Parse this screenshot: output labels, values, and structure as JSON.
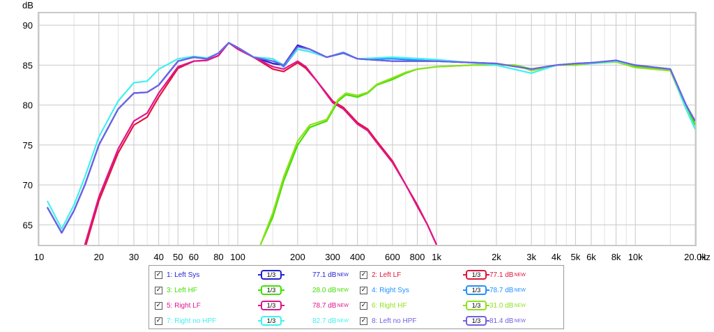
{
  "chart_data": {
    "type": "line",
    "ylabel": "dB",
    "xlabel": "Hz",
    "x_scale": "log",
    "xlim": [
      10,
      20000
    ],
    "ylim": [
      62.5,
      91.5
    ],
    "y_ticks": [
      65,
      70,
      75,
      80,
      85,
      90
    ],
    "x_ticks": [
      {
        "v": 10,
        "l": "10"
      },
      {
        "v": 20,
        "l": "20"
      },
      {
        "v": 30,
        "l": "30"
      },
      {
        "v": 40,
        "l": "40"
      },
      {
        "v": 50,
        "l": "50"
      },
      {
        "v": 60,
        "l": "60"
      },
      {
        "v": 80,
        "l": "80"
      },
      {
        "v": 100,
        "l": "100"
      },
      {
        "v": 200,
        "l": "200"
      },
      {
        "v": 300,
        "l": "300"
      },
      {
        "v": 400,
        "l": "400"
      },
      {
        "v": 600,
        "l": "600"
      },
      {
        "v": 800,
        "l": "800"
      },
      {
        "v": 1000,
        "l": "1k"
      },
      {
        "v": 2000,
        "l": "2k"
      },
      {
        "v": 3000,
        "l": "3k"
      },
      {
        "v": 4000,
        "l": "4k"
      },
      {
        "v": 5000,
        "l": "5k"
      },
      {
        "v": 6000,
        "l": "6k"
      },
      {
        "v": 8000,
        "l": "8k"
      },
      {
        "v": 10000,
        "l": "10k"
      },
      {
        "v": 20000,
        "l": "20.0k"
      }
    ],
    "minor_grid": [
      15,
      25,
      35,
      45,
      70,
      90,
      150,
      250,
      350,
      450,
      500,
      700,
      900,
      1500,
      2500,
      3500,
      4500,
      7000,
      9000,
      15000
    ],
    "grid": true,
    "series": [
      {
        "name": "1: Left Sys",
        "color": "#1f1fd6",
        "points": [
          [
            11,
            67.2
          ],
          [
            13,
            64
          ],
          [
            15,
            66.8
          ],
          [
            17,
            70
          ],
          [
            20,
            75
          ],
          [
            25,
            79.5
          ],
          [
            30,
            81.5
          ],
          [
            35,
            81.6
          ],
          [
            40,
            82.5
          ],
          [
            50,
            85.5
          ],
          [
            60,
            86
          ],
          [
            70,
            85.8
          ],
          [
            80,
            86.5
          ],
          [
            90,
            87.8
          ],
          [
            100,
            87.2
          ],
          [
            120,
            86
          ],
          [
            150,
            85.2
          ],
          [
            170,
            85
          ],
          [
            200,
            87.5
          ],
          [
            230,
            87
          ],
          [
            280,
            86
          ],
          [
            340,
            86.5
          ],
          [
            400,
            85.8
          ],
          [
            600,
            85.5
          ],
          [
            1000,
            85.5
          ],
          [
            2000,
            85.2
          ],
          [
            3000,
            84.5
          ],
          [
            4000,
            85
          ],
          [
            5000,
            85.2
          ],
          [
            6000,
            85.3
          ],
          [
            8000,
            85.5
          ],
          [
            10000,
            85
          ],
          [
            15000,
            84.5
          ],
          [
            18000,
            80
          ],
          [
            20000,
            78
          ]
        ]
      },
      {
        "name": "2: Left LF",
        "color": "#e0143c",
        "points": [
          [
            17,
            62
          ],
          [
            20,
            68
          ],
          [
            25,
            74
          ],
          [
            30,
            77.5
          ],
          [
            35,
            78.5
          ],
          [
            40,
            81
          ],
          [
            50,
            84.6
          ],
          [
            60,
            85.5
          ],
          [
            70,
            85.6
          ],
          [
            80,
            86.2
          ],
          [
            90,
            87.8
          ],
          [
            100,
            87
          ],
          [
            120,
            86
          ],
          [
            150,
            84.5
          ],
          [
            170,
            84.2
          ],
          [
            200,
            85.3
          ],
          [
            220,
            84.6
          ],
          [
            250,
            83
          ],
          [
            300,
            80.5
          ],
          [
            340,
            79.7
          ],
          [
            400,
            77.8
          ],
          [
            450,
            77
          ],
          [
            500,
            75.5
          ],
          [
            600,
            73
          ],
          [
            700,
            70
          ],
          [
            800,
            67.5
          ],
          [
            900,
            65
          ],
          [
            1000,
            62.5
          ]
        ]
      },
      {
        "name": "3: Left HF",
        "color": "#40e000",
        "points": [
          [
            130,
            62.5
          ],
          [
            150,
            66
          ],
          [
            170,
            70.5
          ],
          [
            200,
            75
          ],
          [
            230,
            77.2
          ],
          [
            280,
            78
          ],
          [
            320,
            80.5
          ],
          [
            350,
            81.3
          ],
          [
            400,
            81
          ],
          [
            450,
            81.5
          ],
          [
            500,
            82.5
          ],
          [
            600,
            83.2
          ],
          [
            700,
            84
          ],
          [
            800,
            84.5
          ],
          [
            1000,
            84.8
          ],
          [
            1500,
            85
          ],
          [
            2000,
            85
          ],
          [
            2500,
            85
          ],
          [
            3000,
            84.5
          ],
          [
            4000,
            85
          ],
          [
            5000,
            85
          ],
          [
            6000,
            85.3
          ],
          [
            8000,
            85.5
          ],
          [
            10000,
            84.8
          ],
          [
            15000,
            84.5
          ],
          [
            18000,
            80
          ],
          [
            20000,
            77.5
          ]
        ]
      },
      {
        "name": "4: Right Sys",
        "color": "#1e90ff",
        "points": [
          [
            11,
            67.2
          ],
          [
            13,
            64
          ],
          [
            15,
            66.8
          ],
          [
            17,
            70
          ],
          [
            20,
            75
          ],
          [
            25,
            79.5
          ],
          [
            30,
            81.5
          ],
          [
            35,
            81.6
          ],
          [
            40,
            82.5
          ],
          [
            50,
            85.5
          ],
          [
            60,
            86
          ],
          [
            70,
            85.8
          ],
          [
            80,
            86.5
          ],
          [
            90,
            87.8
          ],
          [
            100,
            87.2
          ],
          [
            120,
            86
          ],
          [
            150,
            85.8
          ],
          [
            170,
            84.8
          ],
          [
            200,
            87
          ],
          [
            230,
            86.7
          ],
          [
            280,
            86
          ],
          [
            340,
            86.6
          ],
          [
            400,
            85.8
          ],
          [
            600,
            85.8
          ],
          [
            1000,
            85.5
          ],
          [
            2000,
            85.2
          ],
          [
            3000,
            84.5
          ],
          [
            4000,
            85
          ],
          [
            5000,
            85.2
          ],
          [
            6000,
            85.3
          ],
          [
            8000,
            85.5
          ],
          [
            10000,
            85
          ],
          [
            15000,
            84.5
          ],
          [
            18000,
            80
          ],
          [
            20000,
            78
          ]
        ]
      },
      {
        "name": "5: Right LF",
        "color": "#e0148c",
        "points": [
          [
            17,
            62.5
          ],
          [
            20,
            68.5
          ],
          [
            25,
            74.5
          ],
          [
            30,
            78
          ],
          [
            35,
            79
          ],
          [
            40,
            81.5
          ],
          [
            50,
            84.8
          ],
          [
            60,
            85.5
          ],
          [
            70,
            85.6
          ],
          [
            80,
            86.2
          ],
          [
            90,
            87.8
          ],
          [
            100,
            87
          ],
          [
            120,
            86
          ],
          [
            150,
            84.8
          ],
          [
            170,
            84.5
          ],
          [
            200,
            85.5
          ],
          [
            220,
            84.8
          ],
          [
            250,
            83
          ],
          [
            300,
            80.3
          ],
          [
            340,
            79.5
          ],
          [
            400,
            77.6
          ],
          [
            450,
            76.8
          ],
          [
            500,
            75.3
          ],
          [
            600,
            72.8
          ],
          [
            700,
            70
          ],
          [
            800,
            67.3
          ],
          [
            900,
            65
          ],
          [
            1000,
            62.5
          ]
        ]
      },
      {
        "name": "6: Right HF",
        "color": "#90e020",
        "points": [
          [
            130,
            62.5
          ],
          [
            150,
            66.5
          ],
          [
            170,
            71
          ],
          [
            200,
            75.5
          ],
          [
            230,
            77.5
          ],
          [
            280,
            78.2
          ],
          [
            320,
            80.7
          ],
          [
            350,
            81.5
          ],
          [
            400,
            81.2
          ],
          [
            450,
            81.6
          ],
          [
            500,
            82.6
          ],
          [
            600,
            83.4
          ],
          [
            700,
            84.1
          ],
          [
            800,
            84.5
          ],
          [
            1000,
            84.8
          ],
          [
            1500,
            85
          ],
          [
            2000,
            85
          ],
          [
            2500,
            85
          ],
          [
            3000,
            84.3
          ],
          [
            4000,
            85
          ],
          [
            5000,
            85
          ],
          [
            6000,
            85.2
          ],
          [
            8000,
            85.4
          ],
          [
            10000,
            84.7
          ],
          [
            15000,
            84.3
          ],
          [
            18000,
            79.5
          ],
          [
            20000,
            77
          ]
        ]
      },
      {
        "name": "7: Right no HPF",
        "color": "#40f0f0",
        "points": [
          [
            11,
            68
          ],
          [
            13,
            64.5
          ],
          [
            15,
            67.5
          ],
          [
            17,
            71
          ],
          [
            20,
            76
          ],
          [
            25,
            80.5
          ],
          [
            30,
            82.8
          ],
          [
            35,
            83
          ],
          [
            40,
            84.5
          ],
          [
            50,
            85.8
          ],
          [
            60,
            86.1
          ],
          [
            70,
            85.9
          ],
          [
            80,
            86.5
          ],
          [
            90,
            87.8
          ],
          [
            100,
            87.2
          ],
          [
            120,
            86
          ],
          [
            150,
            85.8
          ],
          [
            170,
            85
          ],
          [
            200,
            87
          ],
          [
            230,
            86.7
          ],
          [
            280,
            86
          ],
          [
            340,
            86.5
          ],
          [
            400,
            85.8
          ],
          [
            600,
            86
          ],
          [
            1000,
            85.7
          ],
          [
            2000,
            85
          ],
          [
            3000,
            84
          ],
          [
            4000,
            85
          ],
          [
            5000,
            85.2
          ],
          [
            6000,
            85.2
          ],
          [
            8000,
            85.5
          ],
          [
            10000,
            85
          ],
          [
            15000,
            84.5
          ],
          [
            18000,
            79.5
          ],
          [
            20000,
            77
          ]
        ]
      },
      {
        "name": "8: Left no HPF",
        "color": "#7060e0",
        "points": [
          [
            11,
            67.2
          ],
          [
            13,
            64
          ],
          [
            15,
            66.8
          ],
          [
            17,
            70
          ],
          [
            20,
            75
          ],
          [
            25,
            79.5
          ],
          [
            30,
            81.5
          ],
          [
            35,
            81.6
          ],
          [
            40,
            82.5
          ],
          [
            50,
            85.5
          ],
          [
            60,
            86
          ],
          [
            70,
            85.8
          ],
          [
            80,
            86.5
          ],
          [
            90,
            87.8
          ],
          [
            100,
            87.2
          ],
          [
            120,
            86
          ],
          [
            150,
            85.5
          ],
          [
            170,
            85
          ],
          [
            200,
            87.3
          ],
          [
            230,
            87
          ],
          [
            280,
            86
          ],
          [
            340,
            86.5
          ],
          [
            400,
            85.8
          ],
          [
            600,
            85.5
          ],
          [
            1000,
            85.5
          ],
          [
            2000,
            85.2
          ],
          [
            3000,
            84.5
          ],
          [
            4000,
            85
          ],
          [
            5000,
            85.2
          ],
          [
            6000,
            85.3
          ],
          [
            8000,
            85.6
          ],
          [
            10000,
            85
          ],
          [
            15000,
            84.5
          ],
          [
            18000,
            80
          ],
          [
            20000,
            78
          ]
        ]
      }
    ]
  },
  "legend": {
    "rows": [
      [
        {
          "check": "✓",
          "label": "1: Left Sys",
          "color": "#1f1fd6",
          "smoothing": "1/3",
          "level": "77.1 dB",
          "badge": "NEW"
        },
        {
          "check": "✓",
          "label": "2: Left LF",
          "color": "#e0143c",
          "smoothing": "1/3",
          "level": "77.1 dB",
          "badge": "NEW"
        }
      ],
      [
        {
          "check": "✓",
          "label": "3: Left HF",
          "color": "#40e000",
          "smoothing": "1/3",
          "level": "28.0 dB",
          "badge": "NEW"
        },
        {
          "check": "✓",
          "label": "4: Right Sys",
          "color": "#1e90ff",
          "smoothing": "1/3",
          "level": "78.7 dB",
          "badge": "NEW"
        }
      ],
      [
        {
          "check": "✓",
          "label": "5: Right LF",
          "color": "#e0148c",
          "smoothing": "1/3",
          "level": "78.7 dB",
          "badge": "NEW"
        },
        {
          "check": "✓",
          "label": "6: Right HF",
          "color": "#90e020",
          "smoothing": "1/3",
          "level": "31.0 dB",
          "badge": "NEW"
        }
      ],
      [
        {
          "check": "✓",
          "label": "7: Right no HPF",
          "color": "#40f0f0",
          "smoothing": "1/3",
          "level": "82.7 dB",
          "badge": "NEW"
        },
        {
          "check": "✓",
          "label": "8: Left no HPF",
          "color": "#7060e0",
          "smoothing": "1/3",
          "level": "81.4 dB",
          "badge": "NEW"
        }
      ]
    ]
  }
}
